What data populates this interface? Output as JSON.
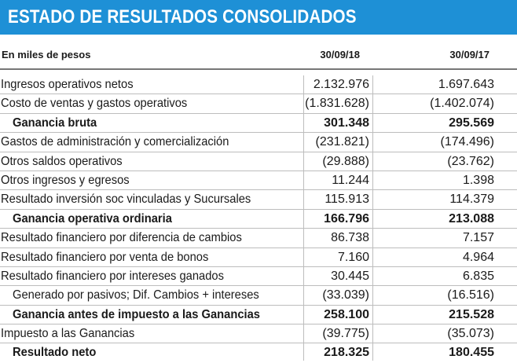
{
  "title": "ESTADO DE RESULTADOS CONSOLIDADOS",
  "header": {
    "unit": "En miles de pesos",
    "col1": "30/09/18",
    "col2": "30/09/17"
  },
  "colors": {
    "title_bg": "#1e90d6",
    "title_text": "#ffffff"
  },
  "rows": [
    {
      "label": "Ingresos operativos netos",
      "v1": "2.132.976",
      "v2": "1.697.643",
      "bold": false,
      "indent": false
    },
    {
      "label": "Costo de ventas y gastos operativos",
      "v1": "(1.831.628)",
      "v2": "(1.402.074)",
      "bold": false,
      "indent": false
    },
    {
      "label": "Ganancia bruta",
      "v1": "301.348",
      "v2": "295.569",
      "bold": true,
      "indent": true
    },
    {
      "label": "Gastos de administración y comercialización",
      "v1": "(231.821)",
      "v2": "(174.496)",
      "bold": false,
      "indent": false
    },
    {
      "label": "Otros saldos operativos",
      "v1": "(29.888)",
      "v2": "(23.762)",
      "bold": false,
      "indent": false
    },
    {
      "label": "Otros ingresos y egresos",
      "v1": "11.244",
      "v2": "1.398",
      "bold": false,
      "indent": false
    },
    {
      "label": "Resultado inversión soc vinculadas y Sucursales",
      "v1": "115.913",
      "v2": "114.379",
      "bold": false,
      "indent": false
    },
    {
      "label": "Ganancia operativa ordinaria",
      "v1": "166.796",
      "v2": "213.088",
      "bold": true,
      "indent": true
    },
    {
      "label": "Resultado financiero por diferencia de cambios",
      "v1": "86.738",
      "v2": "7.157",
      "bold": false,
      "indent": false
    },
    {
      "label": "Resultado financiero por venta de bonos",
      "v1": "7.160",
      "v2": "4.964",
      "bold": false,
      "indent": false
    },
    {
      "label": "Resultado financiero por intereses ganados",
      "v1": "30.445",
      "v2": "6.835",
      "bold": false,
      "indent": false
    },
    {
      "label": "Generado por pasivos;  Dif. Cambios + intereses",
      "v1": "(33.039)",
      "v2": "(16.516)",
      "bold": false,
      "indent": true
    },
    {
      "label": "Ganancia antes de impuesto a las Ganancias",
      "v1": "258.100",
      "v2": "215.528",
      "bold": true,
      "indent": true
    },
    {
      "label": "Impuesto a las Ganancias",
      "v1": "(39.775)",
      "v2": "(35.073)",
      "bold": false,
      "indent": false
    },
    {
      "label": "Resultado neto",
      "v1": "218.325",
      "v2": "180.455",
      "bold": true,
      "indent": true
    }
  ]
}
